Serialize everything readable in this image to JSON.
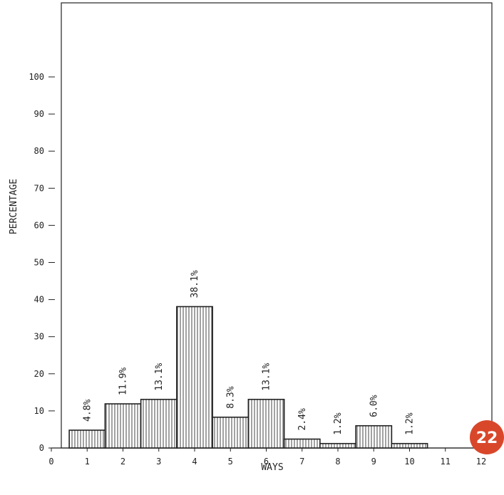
{
  "chart_data": {
    "type": "bar",
    "title": "",
    "xlabel": "WAYS",
    "ylabel": "PERCENTAGE",
    "x_ticks": [
      0,
      1,
      2,
      3,
      4,
      5,
      6,
      7,
      8,
      9,
      10,
      11,
      12
    ],
    "y_ticks": [
      0,
      10,
      20,
      30,
      40,
      50,
      60,
      70,
      80,
      90,
      100
    ],
    "xlim": [
      0,
      12
    ],
    "ylim": [
      0,
      100
    ],
    "grid": false,
    "categories": [
      1,
      2,
      3,
      4,
      5,
      6,
      7,
      8,
      9,
      10
    ],
    "values": [
      4.8,
      11.9,
      13.1,
      38.1,
      8.3,
      13.1,
      2.4,
      1.2,
      6.0,
      1.2
    ],
    "labels": [
      "4.8%",
      "11.9%",
      "13.1%",
      "38.1%",
      "8.3%",
      "13.1%",
      "2.4%",
      "1.2%",
      "6.0%",
      "1.2%"
    ]
  },
  "page_badge": {
    "number": "22",
    "color": "#d9472b"
  },
  "colors": {
    "bar_fill": "#ffffff",
    "bar_hatch": "#444444",
    "axis": "#222222"
  }
}
